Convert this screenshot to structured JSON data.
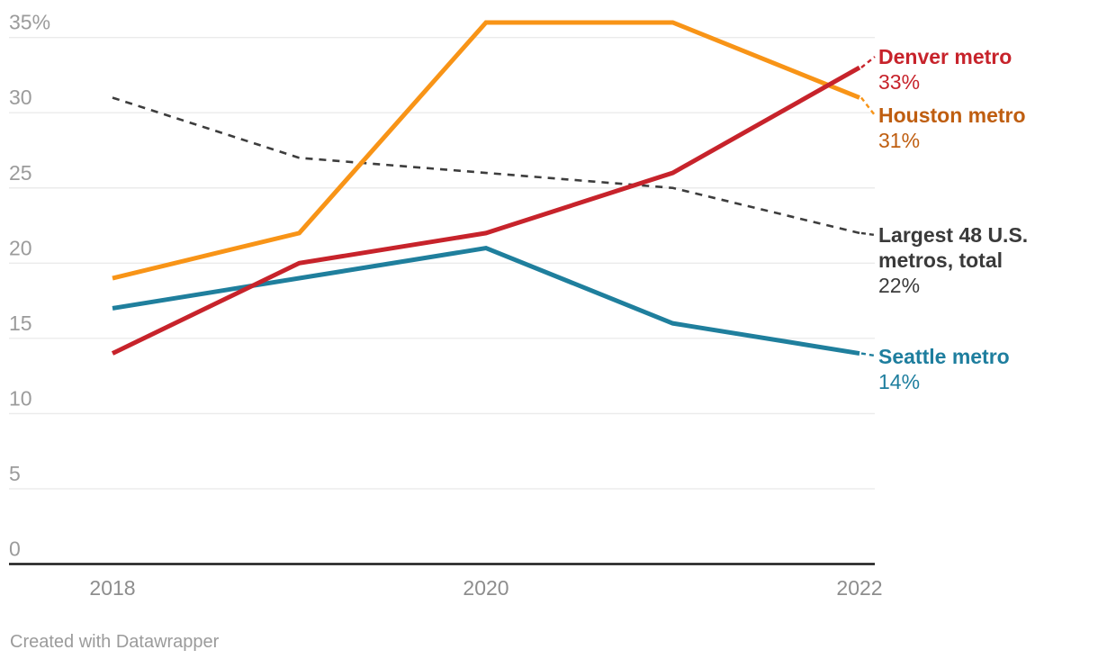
{
  "chart_data": {
    "type": "line",
    "title": "",
    "x_axis": {
      "years": [
        "2018",
        "2019",
        "2020",
        "2021",
        "2022"
      ],
      "ticks": [
        "2018",
        "2020",
        "2022"
      ]
    },
    "y_axis": {
      "unit": "%",
      "range": [
        0,
        36.5
      ],
      "ticks": [
        {
          "value": 0,
          "label": "0"
        },
        {
          "value": 5,
          "label": "5"
        },
        {
          "value": 10,
          "label": "10"
        },
        {
          "value": 15,
          "label": "15"
        },
        {
          "value": 20,
          "label": "20"
        },
        {
          "value": 25,
          "label": "25"
        },
        {
          "value": 30,
          "label": "30"
        },
        {
          "value": 35,
          "label": "35%"
        }
      ]
    },
    "grid": "horizontal",
    "legend_position": "direct-labels-right",
    "series": [
      {
        "id": "denver",
        "label": "Denver metro",
        "value_label": "33%",
        "values": [
          14,
          20,
          22,
          26,
          33
        ],
        "color": "#c7232b",
        "label_color": "#c7232b",
        "dash": false
      },
      {
        "id": "houston",
        "label": "Houston metro",
        "value_label": "31%",
        "values": [
          19,
          22,
          36,
          36,
          31
        ],
        "color": "#f89417",
        "label_color": "#bf5e10",
        "dash": false
      },
      {
        "id": "largest48",
        "label": "Largest 48 U.S. metros, total",
        "value_label": "22%",
        "values": [
          31,
          27,
          26,
          25,
          22
        ],
        "color": "#3d3d3d",
        "label_color": "#3a3a3a",
        "dash": true
      },
      {
        "id": "seattle",
        "label": "Seattle metro",
        "value_label": "14%",
        "values": [
          17,
          19,
          21,
          16,
          14
        ],
        "color": "#1f7f9d",
        "label_color": "#1e7e9e",
        "dash": false
      }
    ]
  },
  "colors": {
    "background": "#ffffff",
    "gridline": "#ebebeb",
    "axis_line": "#1a1a1a",
    "y_tick_text": "#9b9b9b",
    "x_tick_text": "#8d8d8d"
  },
  "footer": {
    "credit": "Created with Datawrapper"
  }
}
